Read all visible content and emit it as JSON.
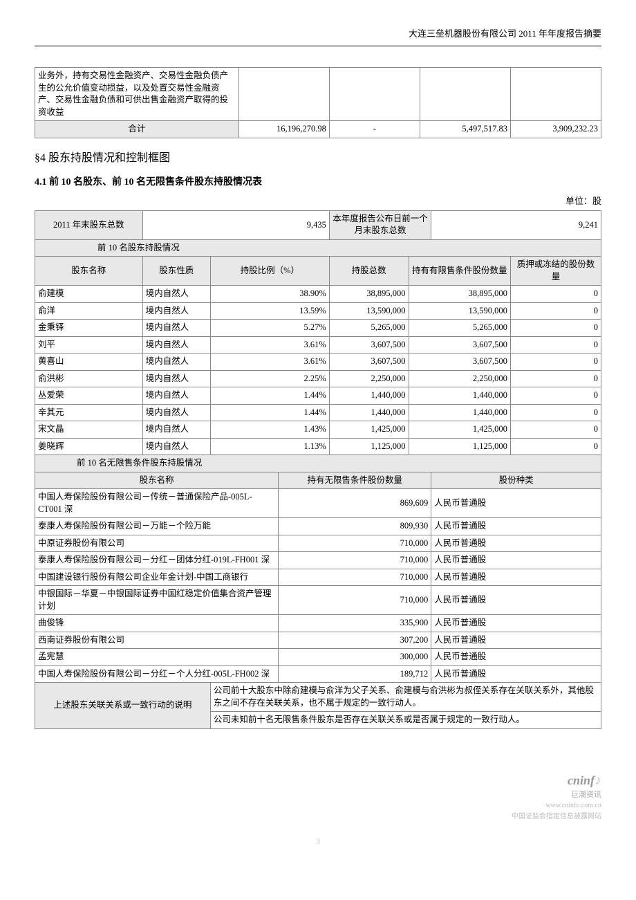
{
  "header": {
    "company_report": "大连三垒机器股份有限公司 2011 年年度报告摘要"
  },
  "table1": {
    "row_desc": "业务外，持有交易性金融资产、交易性金融负债产生的公允价值变动损益，以及处置交易性金融资产、交易性金融负债和可供出售金融资产取得的投资收益",
    "total_label": "合计",
    "total_c1": "16,196,270.98",
    "total_c2": "-",
    "total_c3": "5,497,517.83",
    "total_c4": "3,909,232.23"
  },
  "section4": {
    "title": "§4  股东持股情况和控制框图",
    "sub41": "4.1 前 10 名股东、前 10 名无限售条件股东持股情况表",
    "unit": "单位：股"
  },
  "t2": {
    "h_year_end_total": "2011 年末股东总数",
    "v_year_end_total": "9,435",
    "h_report_prev_total": "本年度报告公布日前一个月末股东总数",
    "v_report_prev_total": "9,241",
    "top10_header": "前 10 名股东持股情况",
    "col_name": "股东名称",
    "col_nature": "股东性质",
    "col_ratio": "持股比例（%）",
    "col_total": "持股总数",
    "col_restricted": "持有有限售条件股份数量",
    "col_pledged": "质押或冻结的股份数量",
    "rows": [
      {
        "name": "俞建模",
        "nature": "境内自然人",
        "ratio": "38.90%",
        "total": "38,895,000",
        "restricted": "38,895,000",
        "pledged": "0"
      },
      {
        "name": "俞洋",
        "nature": "境内自然人",
        "ratio": "13.59%",
        "total": "13,590,000",
        "restricted": "13,590,000",
        "pledged": "0"
      },
      {
        "name": "金秉铎",
        "nature": "境内自然人",
        "ratio": "5.27%",
        "total": "5,265,000",
        "restricted": "5,265,000",
        "pledged": "0"
      },
      {
        "name": "刘平",
        "nature": "境内自然人",
        "ratio": "3.61%",
        "total": "3,607,500",
        "restricted": "3,607,500",
        "pledged": "0"
      },
      {
        "name": "黄喜山",
        "nature": "境内自然人",
        "ratio": "3.61%",
        "total": "3,607,500",
        "restricted": "3,607,500",
        "pledged": "0"
      },
      {
        "name": "俞洪彬",
        "nature": "境内自然人",
        "ratio": "2.25%",
        "total": "2,250,000",
        "restricted": "2,250,000",
        "pledged": "0"
      },
      {
        "name": "丛爱荣",
        "nature": "境内自然人",
        "ratio": "1.44%",
        "total": "1,440,000",
        "restricted": "1,440,000",
        "pledged": "0"
      },
      {
        "name": "辛其元",
        "nature": "境内自然人",
        "ratio": "1.44%",
        "total": "1,440,000",
        "restricted": "1,440,000",
        "pledged": "0"
      },
      {
        "name": "宋文晶",
        "nature": "境内自然人",
        "ratio": "1.43%",
        "total": "1,425,000",
        "restricted": "1,425,000",
        "pledged": "0"
      },
      {
        "name": "姜晓辉",
        "nature": "境内自然人",
        "ratio": "1.13%",
        "total": "1,125,000",
        "restricted": "1,125,000",
        "pledged": "0"
      }
    ],
    "top10_unrestricted_header": "前 10 名无限售条件股东持股情况",
    "col2_name": "股东名称",
    "col2_qty": "持有无限售条件股份数量",
    "col2_type": "股份种类",
    "urows": [
      {
        "name": "中国人寿保险股份有限公司－传统－普通保险产品-005L-CT001 深",
        "qty": "869,609",
        "type": "人民币普通股"
      },
      {
        "name": "泰康人寿保险股份有限公司－万能－个险万能",
        "qty": "809,930",
        "type": "人民币普通股"
      },
      {
        "name": "中原证券股份有限公司",
        "qty": "710,000",
        "type": "人民币普通股"
      },
      {
        "name": "泰康人寿保险股份有限公司－分红－团体分红-019L-FH001 深",
        "qty": "710,000",
        "type": "人民币普通股"
      },
      {
        "name": "中国建设银行股份有限公司企业年金计划-中国工商银行",
        "qty": "710,000",
        "type": "人民币普通股"
      },
      {
        "name": "中银国际－华夏－中银国际证券中国红稳定价值集合资产管理计划",
        "qty": "710,000",
        "type": "人民币普通股"
      },
      {
        "name": "曲俊锋",
        "qty": "335,900",
        "type": "人民币普通股"
      },
      {
        "name": "西南证券股份有限公司",
        "qty": "307,200",
        "type": "人民币普通股"
      },
      {
        "name": "孟宪慧",
        "qty": "300,000",
        "type": "人民币普通股"
      },
      {
        "name": "中国人寿保险股份有限公司－分红－个人分红-005L-FH002 深",
        "qty": "189,712",
        "type": "人民币普通股"
      }
    ],
    "note_label": "上述股东关联关系或一致行动的说明",
    "note_text1": "公司前十大股东中除俞建模与俞洋为父子关系、俞建模与俞洪彬为叔侄关系存在关联关系外，其他股东之间不存在关联关系，也不属于规定的一致行动人。",
    "note_text2": "公司未知前十名无限售条件股东是否存在关联关系或是否属于规定的一致行动人。"
  },
  "footer": {
    "logo": "cninf",
    "brand": "巨潮资讯",
    "url": "www.cninfo.com.cn",
    "tagline": "中国证监会指定信息披露网站",
    "page": "3"
  }
}
